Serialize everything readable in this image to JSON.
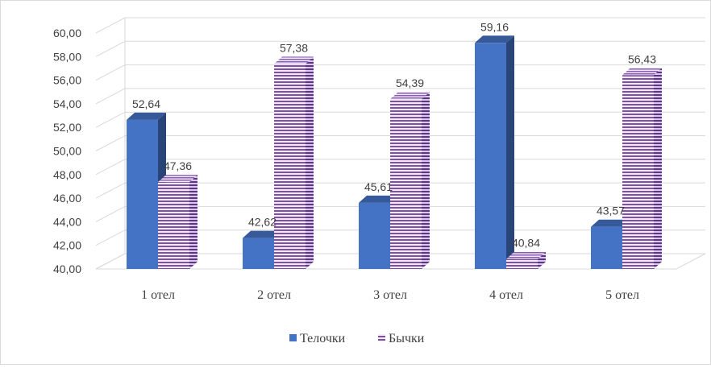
{
  "chart_data": {
    "type": "bar",
    "categories": [
      "1 отел",
      "2 отел",
      "3 отел",
      "4 отел",
      "5 отел"
    ],
    "series": [
      {
        "name": "Телочки",
        "values": [
          52.64,
          42.62,
          45.61,
          59.16,
          43.57
        ],
        "labels": [
          "52,64",
          "42,62",
          "45,61",
          "59,16",
          "43,57"
        ],
        "color": "#4472C4"
      },
      {
        "name": "Бычки",
        "values": [
          47.36,
          57.38,
          54.39,
          40.84,
          56.43
        ],
        "labels": [
          "47,36",
          "57,38",
          "54,39",
          "40,84",
          "56,43"
        ],
        "color": "#7F4FA8",
        "pattern": "horizontal-stripes"
      }
    ],
    "yticks": [
      "40,00",
      "42,00",
      "44,00",
      "46,00",
      "48,00",
      "50,00",
      "52,00",
      "54,00",
      "56,00",
      "58,00",
      "60,00"
    ],
    "ylim": [
      40,
      60
    ],
    "grid": true,
    "style": "3d-clustered-column",
    "legend": "bottom-center",
    "title": "",
    "xlabel": "",
    "ylabel": ""
  }
}
